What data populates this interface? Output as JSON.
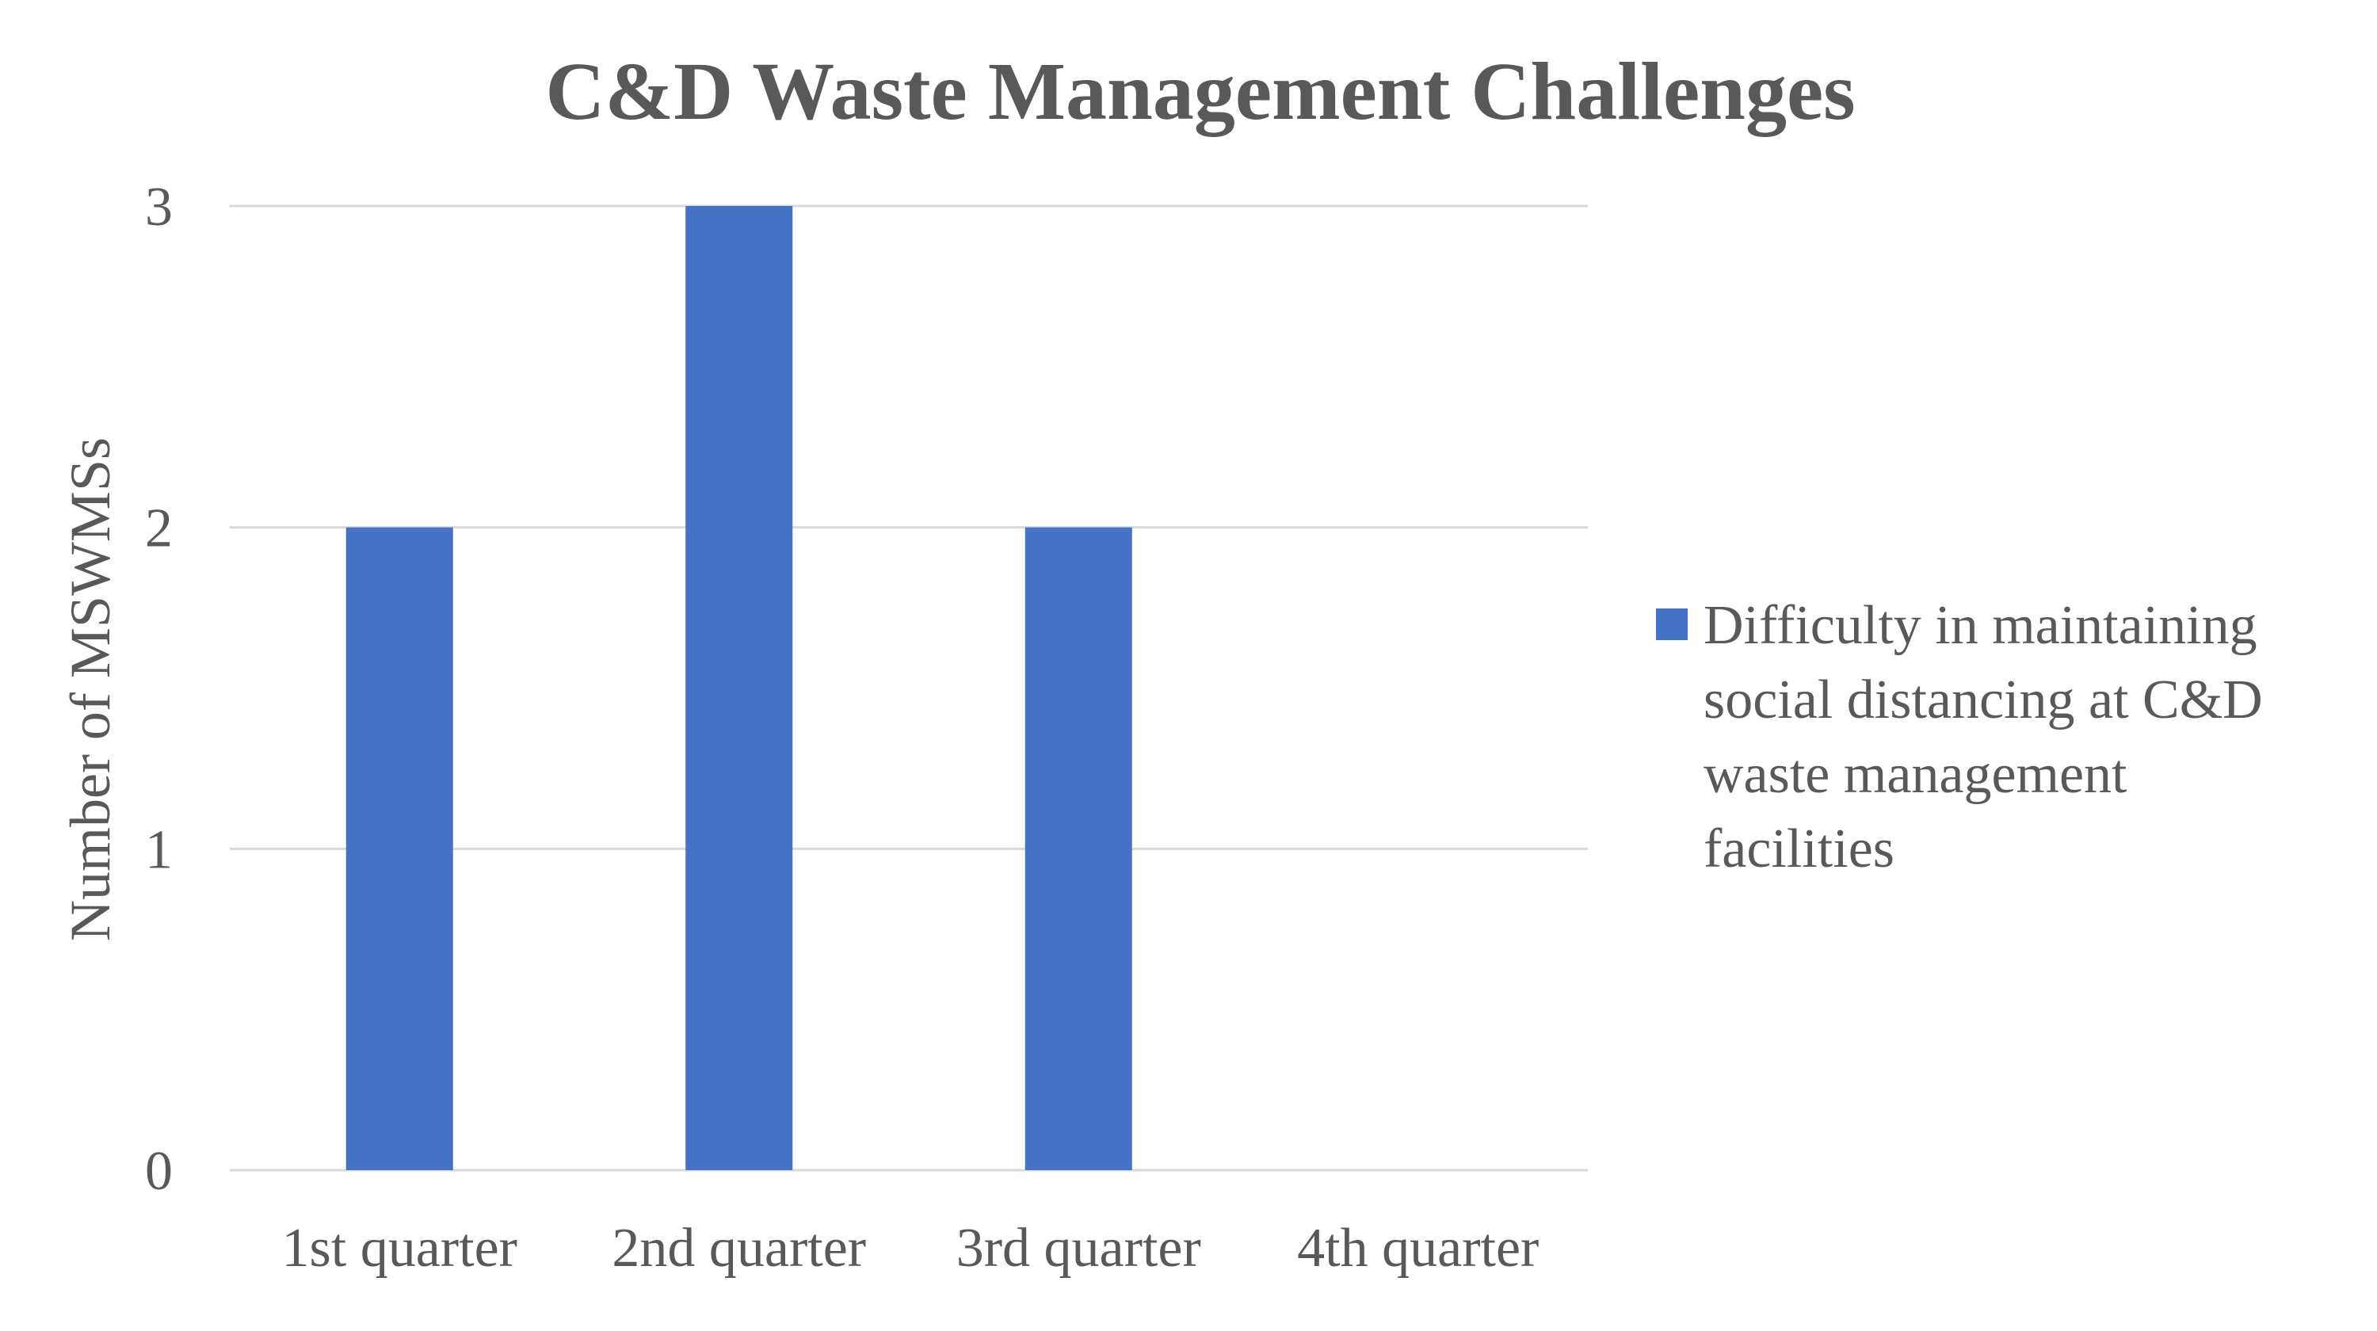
{
  "chart_data": {
    "type": "bar",
    "title": "C&D Waste Management Challenges",
    "xlabel": "",
    "ylabel": "Number of MSWMSs",
    "categories": [
      "1st quarter",
      "2nd quarter",
      "3rd quarter",
      "4th quarter"
    ],
    "yticks": [
      "0",
      "1",
      "2",
      "3"
    ],
    "ylim": [
      0,
      3
    ],
    "grid": true,
    "legend_position": "right",
    "series": [
      {
        "name": "Difficulty in maintaining social distancing at C&D waste management facilities",
        "legend_lines": [
          "Difficulty in maintaining",
          "social distancing at C&D",
          "waste management",
          "facilities"
        ],
        "color": "#4472C4",
        "values": [
          2,
          3,
          2,
          0
        ]
      }
    ]
  },
  "colors": {
    "gridline": "#d9d9d9",
    "text": "#595959",
    "bar": "#4472C4"
  }
}
